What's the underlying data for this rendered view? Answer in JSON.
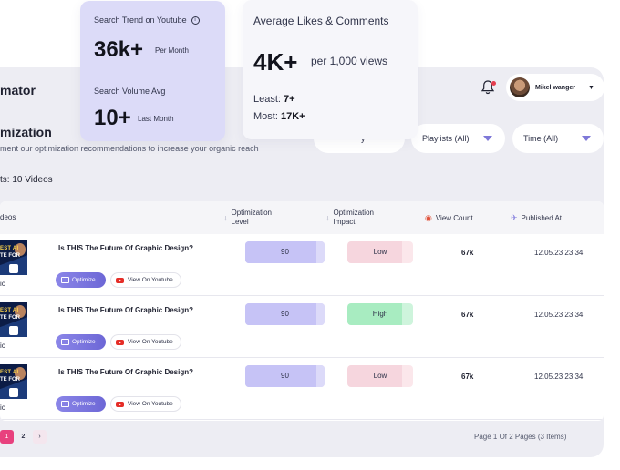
{
  "app": {
    "title": "mator"
  },
  "header": {
    "user_name": "Mikel wanger"
  },
  "section": {
    "title": "mization",
    "subtitle": "ment our optimization recommendations to increase your organic reach"
  },
  "filters": {
    "first_label": "y",
    "playlists_label": "Playlists (All)",
    "time_label": "Time (All)"
  },
  "results_label": "ts: 10 Videos",
  "table": {
    "headers": {
      "videos": "deos",
      "level_line1": "Optimization",
      "level_line2": "Level",
      "impact_line1": "Optimization",
      "impact_line2": "Impact",
      "views": "View Count",
      "published": "Published At"
    },
    "rows": [
      {
        "title": "Is THIS The Future Of Graphic Design?",
        "category": "ic",
        "thumb_line1": "EST AI",
        "thumb_line2": "TE FOR",
        "optimize_label": "Optimize",
        "youtube_label": "View On Youtube",
        "level": "90",
        "level_fraction": 0.9,
        "impact": "Low",
        "impact_color": "#f9dde3",
        "impact_fill_color": "#f6d6de",
        "views": "67k",
        "published": "12.05.23 23:34"
      },
      {
        "title": "Is THIS The Future Of Graphic Design?",
        "category": "ic",
        "thumb_line1": "EST AI",
        "thumb_line2": "TE FOR",
        "optimize_label": "Optimize",
        "youtube_label": "View On Youtube",
        "level": "90",
        "level_fraction": 0.9,
        "impact": "High",
        "impact_color": "#b9f0cd",
        "impact_fill_color": "#a8ecc1",
        "views": "67k",
        "published": "12.05.23 23:34"
      },
      {
        "title": "Is THIS The Future Of Graphic Design?",
        "category": "ic",
        "thumb_line1": "EST AI",
        "thumb_line2": "TE FOR",
        "optimize_label": "Optimize",
        "youtube_label": "View On Youtube",
        "level": "90",
        "level_fraction": 0.9,
        "impact": "Low",
        "impact_color": "#f9dde3",
        "impact_fill_color": "#f6d6de",
        "views": "67k",
        "published": "12.05.23 23:34"
      }
    ]
  },
  "pagination": {
    "pages": [
      "1",
      "2"
    ],
    "current": "1",
    "next": "›",
    "info": "Page 1 Of 2 Pages (3 Items)"
  },
  "cards": {
    "trend": {
      "label1": "Search Trend on Youtube",
      "value1": "36k+",
      "unit1": "Per Month",
      "label2": "Search Volume Avg",
      "value2": "10+",
      "unit2": "Last Month"
    },
    "likes": {
      "label": "Average Likes & Comments",
      "value": "4K+",
      "unit": "per 1,000 views",
      "least_label": "Least:",
      "least_value": "7+",
      "most_label": "Most:",
      "most_value": "17K+"
    }
  },
  "colors": {
    "accent": "#7e78d8",
    "pager_active": "#e8417e",
    "optimize_button": "#6d67d6"
  }
}
